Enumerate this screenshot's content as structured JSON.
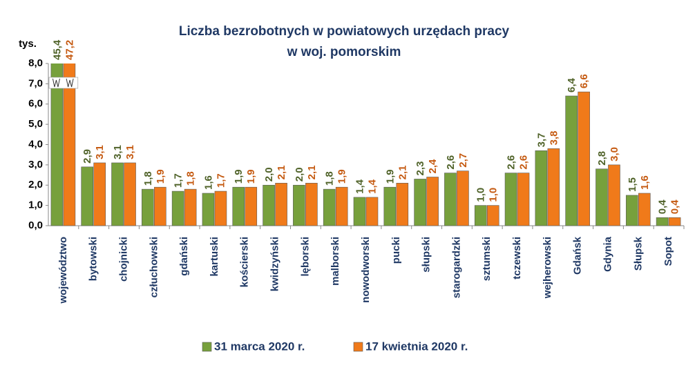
{
  "chart_data": {
    "type": "bar",
    "title": [
      "Liczba bezrobotnych w powiatowych urzędach pracy",
      "w woj. pomorskim"
    ],
    "y_unit": "tys.",
    "categories": [
      "województwo",
      "bytowski",
      "chojnicki",
      "człuchowski",
      "gdański",
      "kartuski",
      "kościerski",
      "kwidzyński",
      "lęborski",
      "malborski",
      "nowodworski",
      "pucki",
      "słupski",
      "starogardzki",
      "sztumski",
      "tczewski",
      "wejherowski",
      "Gdańsk",
      "Gdynia",
      "Słupsk",
      "Sopot"
    ],
    "series": [
      {
        "name": "31 marca 2020 r.",
        "color": "#77a03c",
        "label_color": "#4f6228",
        "values": [
          45.4,
          2.9,
          3.1,
          1.8,
          1.7,
          1.6,
          1.9,
          2.0,
          2.0,
          1.8,
          1.4,
          1.9,
          2.3,
          2.6,
          1.0,
          2.6,
          3.7,
          6.4,
          2.8,
          1.5,
          0.4
        ],
        "value_labels": [
          "45,4",
          "2,9",
          "3,1",
          "1,8",
          "1,7",
          "1,6",
          "1,9",
          "2,0",
          "2,0",
          "1,8",
          "1,4",
          "1,9",
          "2,3",
          "2,6",
          "1,0",
          "2,6",
          "3,7",
          "6,4",
          "2,8",
          "1,5",
          "0,4"
        ]
      },
      {
        "name": "17 kwietnia 2020 r.",
        "color": "#f07a1a",
        "label_color": "#c55a11",
        "values": [
          47.2,
          3.1,
          3.1,
          1.9,
          1.8,
          1.7,
          1.9,
          2.1,
          2.1,
          1.9,
          1.4,
          2.1,
          2.4,
          2.7,
          1.0,
          2.6,
          3.8,
          6.6,
          3.0,
          1.6,
          0.4
        ],
        "value_labels": [
          "47,2",
          "3,1",
          "3,1",
          "1,9",
          "1,8",
          "1,7",
          "1,9",
          "2,1",
          "2,1",
          "1,9",
          "1,4",
          "2,1",
          "2,4",
          "2,7",
          "1,0",
          "2,6",
          "3,8",
          "6,6",
          "3,0",
          "1,6",
          "0,4"
        ]
      }
    ],
    "ylim": [
      0,
      8
    ],
    "yticks": [
      {
        "value": 0,
        "label": "0,0"
      },
      {
        "value": 1,
        "label": "1,0"
      },
      {
        "value": 2,
        "label": "2,0"
      },
      {
        "value": 3,
        "label": "3,0"
      },
      {
        "value": 4,
        "label": "4,0"
      },
      {
        "value": 5,
        "label": "5,0"
      },
      {
        "value": 6,
        "label": "6,0"
      },
      {
        "value": 7,
        "label": "7,0"
      },
      {
        "value": 8,
        "label": "8,0"
      }
    ]
  }
}
